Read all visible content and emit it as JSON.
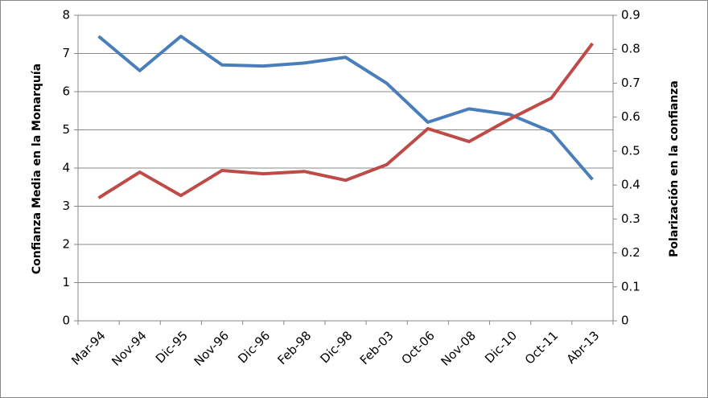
{
  "chart_data": {
    "type": "line",
    "y_label": "Confianza  Media  en la Monarquía",
    "y2_label": "Polarización   en la confianza",
    "categories": [
      "Mar-94",
      "Nov-94",
      "Dic-95",
      "Nov-96",
      "Dic-96",
      "Feb-98",
      "Dic-98",
      "Feb-03",
      "Oct-06",
      "Nov-08",
      "Dic-10",
      "Oct-11",
      "Abr-13"
    ],
    "series": [
      {
        "color": "#4a7ebb",
        "values": [
          7.45,
          6.55,
          7.45,
          6.7,
          6.67,
          6.75,
          6.9,
          6.22,
          5.2,
          5.55,
          5.4,
          4.95,
          3.7
        ]
      },
      {
        "color": "#be4b48",
        "axis": "y2",
        "values": [
          0.362,
          0.438,
          0.369,
          0.443,
          0.433,
          0.44,
          0.414,
          0.46,
          0.566,
          0.528,
          0.595,
          0.656,
          0.817
        ]
      }
    ],
    "ylim": [
      0,
      8
    ],
    "yticks": [
      0,
      1,
      2,
      3,
      4,
      5,
      6,
      7,
      8
    ],
    "y2lim": [
      0,
      0.9
    ],
    "y2ticks": [
      0,
      0.1,
      0.2,
      0.3,
      0.4,
      0.5,
      0.6,
      0.7,
      0.8,
      0.9
    ],
    "grid": true
  }
}
